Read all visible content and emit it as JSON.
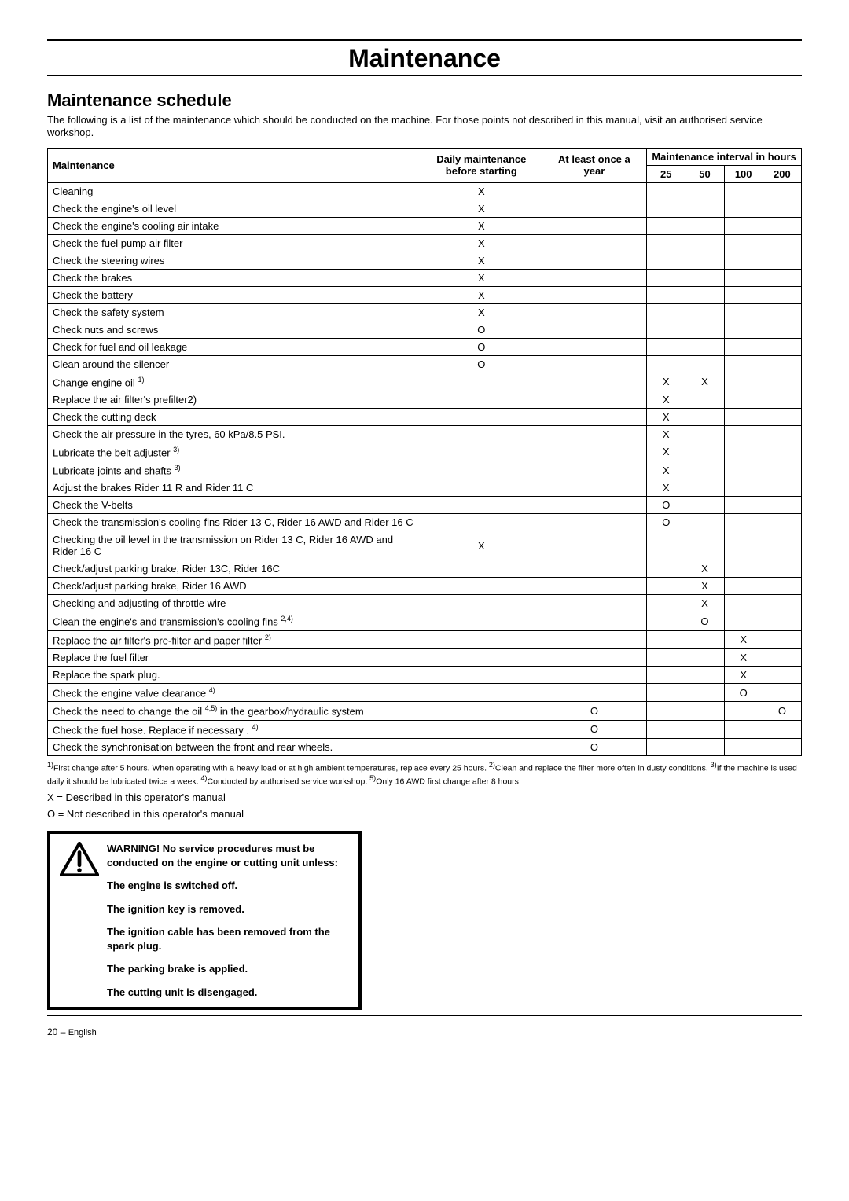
{
  "page": {
    "main_title": "Maintenance",
    "section_title": "Maintenance schedule",
    "intro": "The following is a list of the maintenance which should be conducted on the machine. For those points not described in this manual, visit an authorised service workshop.",
    "page_number": "20",
    "language": "English"
  },
  "table": {
    "headers": {
      "maintenance": "Maintenance",
      "daily": "Daily maintenance before starting",
      "yearly": "At least once a year",
      "interval": "Maintenance interval in hours",
      "h25": "25",
      "h50": "50",
      "h100": "100",
      "h200": "200"
    },
    "rows": [
      {
        "task": "Cleaning",
        "daily": "X",
        "yearly": "",
        "h25": "",
        "h50": "",
        "h100": "",
        "h200": ""
      },
      {
        "task": "Check the engine's oil level",
        "daily": "X",
        "yearly": "",
        "h25": "",
        "h50": "",
        "h100": "",
        "h200": ""
      },
      {
        "task": "Check the engine's cooling air intake",
        "daily": "X",
        "yearly": "",
        "h25": "",
        "h50": "",
        "h100": "",
        "h200": ""
      },
      {
        "task": "Check the fuel pump air filter",
        "daily": "X",
        "yearly": "",
        "h25": "",
        "h50": "",
        "h100": "",
        "h200": ""
      },
      {
        "task": "Check the steering wires",
        "daily": "X",
        "yearly": "",
        "h25": "",
        "h50": "",
        "h100": "",
        "h200": ""
      },
      {
        "task": "Check the brakes",
        "daily": "X",
        "yearly": "",
        "h25": "",
        "h50": "",
        "h100": "",
        "h200": ""
      },
      {
        "task": "Check the battery",
        "daily": "X",
        "yearly": "",
        "h25": "",
        "h50": "",
        "h100": "",
        "h200": ""
      },
      {
        "task": "Check the safety system",
        "daily": "X",
        "yearly": "",
        "h25": "",
        "h50": "",
        "h100": "",
        "h200": ""
      },
      {
        "task": "Check nuts and screws",
        "daily": "O",
        "yearly": "",
        "h25": "",
        "h50": "",
        "h100": "",
        "h200": ""
      },
      {
        "task": "Check for fuel and oil leakage",
        "daily": "O",
        "yearly": "",
        "h25": "",
        "h50": "",
        "h100": "",
        "h200": ""
      },
      {
        "task": "Clean around the silencer",
        "daily": "O",
        "yearly": "",
        "h25": "",
        "h50": "",
        "h100": "",
        "h200": ""
      },
      {
        "task": "Change engine oil",
        "sup": "1)",
        "daily": "",
        "yearly": "",
        "h25": "X",
        "h50": "X",
        "h100": "",
        "h200": ""
      },
      {
        "task": "Replace the air filter's prefilter2)",
        "daily": "",
        "yearly": "",
        "h25": "X",
        "h50": "",
        "h100": "",
        "h200": ""
      },
      {
        "task": "Check the cutting deck",
        "daily": "",
        "yearly": "",
        "h25": "X",
        "h50": "",
        "h100": "",
        "h200": ""
      },
      {
        "task": "Check the air pressure in the tyres, 60 kPa/8.5 PSI.",
        "daily": "",
        "yearly": "",
        "h25": "X",
        "h50": "",
        "h100": "",
        "h200": ""
      },
      {
        "task": "Lubricate the belt adjuster",
        "sup": "3)",
        "daily": "",
        "yearly": "",
        "h25": "X",
        "h50": "",
        "h100": "",
        "h200": ""
      },
      {
        "task": "Lubricate joints and shafts",
        "sup": "3)",
        "daily": "",
        "yearly": "",
        "h25": "X",
        "h50": "",
        "h100": "",
        "h200": ""
      },
      {
        "task": "Adjust the brakes Rider 11 R and Rider 11 C",
        "daily": "",
        "yearly": "",
        "h25": "X",
        "h50": "",
        "h100": "",
        "h200": ""
      },
      {
        "task": "Check the V-belts",
        "daily": "",
        "yearly": "",
        "h25": "O",
        "h50": "",
        "h100": "",
        "h200": ""
      },
      {
        "task": "Check the transmission's cooling fins Rider 13 C, Rider 16 AWD and Rider 16 C",
        "daily": "",
        "yearly": "",
        "h25": "O",
        "h50": "",
        "h100": "",
        "h200": ""
      },
      {
        "task": "Checking the oil level in the transmission on Rider 13 C, Rider 16 AWD and Rider 16 C",
        "daily": "X",
        "yearly": "",
        "h25": "",
        "h50": "",
        "h100": "",
        "h200": ""
      },
      {
        "task": "Check/adjust parking brake, Rider 13C, Rider 16C",
        "daily": "",
        "yearly": "",
        "h25": "",
        "h50": "X",
        "h100": "",
        "h200": ""
      },
      {
        "task": "Check/adjust parking brake, Rider 16 AWD",
        "daily": "",
        "yearly": "",
        "h25": "",
        "h50": "X",
        "h100": "",
        "h200": ""
      },
      {
        "task": "Checking and adjusting of throttle wire",
        "daily": "",
        "yearly": "",
        "h25": "",
        "h50": "X",
        "h100": "",
        "h200": ""
      },
      {
        "task": "Clean the engine's and transmission's cooling fins",
        "sup": "2,4)",
        "daily": "",
        "yearly": "",
        "h25": "",
        "h50": "O",
        "h100": "",
        "h200": ""
      },
      {
        "task": "Replace the air filter's pre-filter and paper filter",
        "sup": "2)",
        "daily": "",
        "yearly": "",
        "h25": "",
        "h50": "",
        "h100": "X",
        "h200": ""
      },
      {
        "task": "Replace the fuel filter",
        "daily": "",
        "yearly": "",
        "h25": "",
        "h50": "",
        "h100": "X",
        "h200": ""
      },
      {
        "task": "Replace the spark plug.",
        "daily": "",
        "yearly": "",
        "h25": "",
        "h50": "",
        "h100": "X",
        "h200": ""
      },
      {
        "task": "Check the engine valve clearance",
        "sup": "4)",
        "daily": "",
        "yearly": "",
        "h25": "",
        "h50": "",
        "h100": "O",
        "h200": ""
      },
      {
        "task_pre": "Check the need to change the oil",
        "sup": "4,5)",
        "task_post": " in the gearbox/hydraulic system",
        "daily": "",
        "yearly": "O",
        "h25": "",
        "h50": "",
        "h100": "",
        "h200": "O"
      },
      {
        "task": "Check the fuel hose. Replace if necessary .",
        "sup": "4)",
        "daily": "",
        "yearly": "O",
        "h25": "",
        "h50": "",
        "h100": "",
        "h200": ""
      },
      {
        "task": "Check the synchronisation between the front and rear wheels.",
        "daily": "",
        "yearly": "O",
        "h25": "",
        "h50": "",
        "h100": "",
        "h200": ""
      }
    ]
  },
  "footnotes": {
    "text_1": "1)",
    "fn1": "First change after 5 hours. When operating with a heavy load or at high ambient temperatures, replace every 25 hours.",
    "text_2": "2)",
    "fn2": "Clean and replace the filter more often in dusty conditions.",
    "text_3": "3)",
    "fn3": "If the machine is used daily it should be lubricated twice a week.",
    "text_4": "4)",
    "fn4": "Conducted by authorised service workshop.",
    "text_5": "5)",
    "fn5": "Only 16 AWD first change after 8 hours"
  },
  "legend": {
    "x": "X = Described in this operator's manual",
    "o": "O = Not described in this operator's manual"
  },
  "warning": {
    "heading": "WARNING! No service procedures must be conducted on the engine or cutting unit unless:",
    "l1": "The engine is switched off.",
    "l2": "The ignition key is removed.",
    "l3": "The ignition cable has been removed from the spark plug.",
    "l4": "The parking brake is applied.",
    "l5": "The cutting unit is disengaged."
  }
}
